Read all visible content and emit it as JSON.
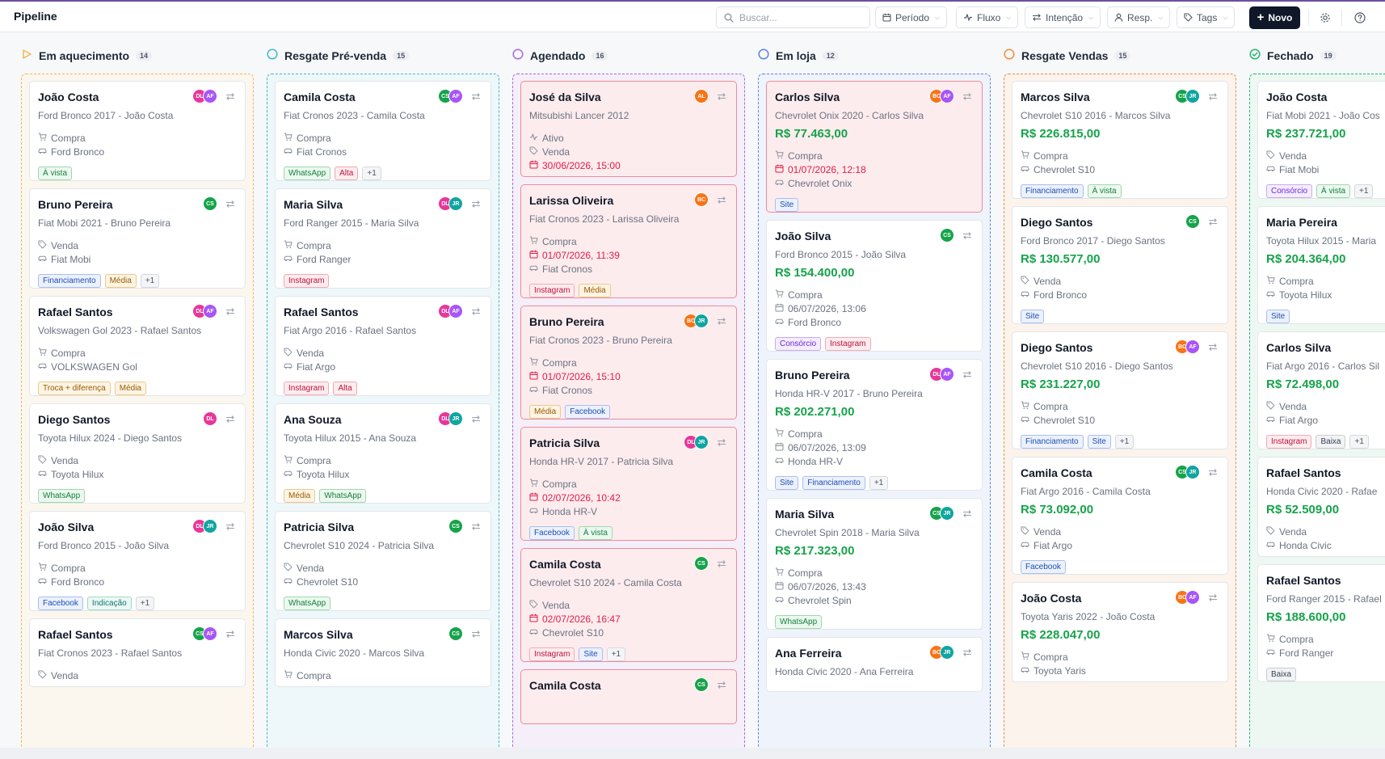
{
  "header": {
    "title": "Pipeline",
    "search_placeholder": "Buscar...",
    "filters": [
      {
        "label": "Período",
        "icon": "calendar-icon"
      },
      {
        "label": "Fluxo",
        "icon": "activity-icon"
      },
      {
        "label": "Intenção",
        "icon": "arrows-icon"
      },
      {
        "label": "Resp.",
        "icon": "user-icon"
      },
      {
        "label": "Tags",
        "icon": "tag-icon"
      }
    ],
    "new_label": "Novo"
  },
  "colors": {
    "green": "#16a34a",
    "red": "#e11d48",
    "accent_dark": "#0f1729"
  },
  "columns": [
    {
      "title": "Em aquecimento",
      "count": "14",
      "icon": "play-triangle-icon",
      "cards": [
        {
          "name": "João Costa",
          "subtitle": "Ford Bronco 2017 - João Costa",
          "price": "",
          "overdue": false,
          "lines": [
            {
              "icon": "cart-icon",
              "text": "Compra"
            },
            {
              "icon": "car-icon",
              "text": "Ford Bronco"
            }
          ],
          "tags": [
            "À vista"
          ],
          "avatars": [
            "DL",
            "AF"
          ]
        },
        {
          "name": "Bruno Pereira",
          "subtitle": "Fiat Mobi 2021 - Bruno Pereira",
          "price": "",
          "overdue": false,
          "lines": [
            {
              "icon": "tag-icon",
              "text": "Venda"
            },
            {
              "icon": "car-icon",
              "text": "Fiat Mobi"
            }
          ],
          "tags": [
            "Financiamento",
            "Média",
            "+1"
          ],
          "avatars": [
            "CS"
          ]
        },
        {
          "name": "Rafael Santos",
          "subtitle": "Volkswagen Gol 2023 - Rafael Santos",
          "price": "",
          "overdue": false,
          "lines": [
            {
              "icon": "cart-icon",
              "text": "Compra"
            },
            {
              "icon": "car-icon",
              "text": "VOLKSWAGEN Gol"
            }
          ],
          "tags": [
            "Troca + diferença",
            "Média"
          ],
          "avatars": [
            "DL",
            "AF"
          ]
        },
        {
          "name": "Diego Santos",
          "subtitle": "Toyota Hilux 2024 - Diego Santos",
          "price": "",
          "overdue": false,
          "lines": [
            {
              "icon": "tag-icon",
              "text": "Venda"
            },
            {
              "icon": "car-icon",
              "text": "Toyota Hilux"
            }
          ],
          "tags": [
            "WhatsApp"
          ],
          "avatars": [
            "DL"
          ]
        },
        {
          "name": "João Silva",
          "subtitle": "Ford Bronco 2015 - João Silva",
          "price": "",
          "overdue": false,
          "lines": [
            {
              "icon": "cart-icon",
              "text": "Compra"
            },
            {
              "icon": "car-icon",
              "text": "Ford Bronco"
            }
          ],
          "tags": [
            "Facebook",
            "Indicação",
            "+1"
          ],
          "avatars": [
            "DL",
            "JR"
          ]
        },
        {
          "name": "Rafael Santos",
          "subtitle": "Fiat Cronos 2023 - Rafael Santos",
          "price": "",
          "overdue": false,
          "lines": [
            {
              "icon": "tag-icon",
              "text": "Venda"
            }
          ],
          "tags": [],
          "avatars": [
            "CS",
            "AF"
          ]
        }
      ]
    },
    {
      "title": "Resgate Pré-venda",
      "count": "15",
      "icon": "circle-icon",
      "cards": [
        {
          "name": "Camila Costa",
          "subtitle": "Fiat Cronos 2023 - Camila Costa",
          "price": "",
          "overdue": false,
          "lines": [
            {
              "icon": "cart-icon",
              "text": "Compra"
            },
            {
              "icon": "car-icon",
              "text": "Fiat Cronos"
            }
          ],
          "tags": [
            "WhatsApp",
            "Alta",
            "+1"
          ],
          "avatars": [
            "CS",
            "AF"
          ]
        },
        {
          "name": "Maria Silva",
          "subtitle": "Ford Ranger 2015 - Maria Silva",
          "price": "",
          "overdue": false,
          "lines": [
            {
              "icon": "cart-icon",
              "text": "Compra"
            },
            {
              "icon": "car-icon",
              "text": "Ford Ranger"
            }
          ],
          "tags": [
            "Instagram"
          ],
          "avatars": [
            "DL",
            "JR"
          ]
        },
        {
          "name": "Rafael Santos",
          "subtitle": "Fiat Argo 2016 - Rafael Santos",
          "price": "",
          "overdue": false,
          "lines": [
            {
              "icon": "tag-icon",
              "text": "Venda"
            },
            {
              "icon": "car-icon",
              "text": "Fiat Argo"
            }
          ],
          "tags": [
            "Instagram",
            "Alta"
          ],
          "avatars": [
            "DL",
            "AF"
          ]
        },
        {
          "name": "Ana Souza",
          "subtitle": "Toyota Hilux 2015 - Ana Souza",
          "price": "",
          "overdue": false,
          "lines": [
            {
              "icon": "cart-icon",
              "text": "Compra"
            },
            {
              "icon": "car-icon",
              "text": "Toyota Hilux"
            }
          ],
          "tags": [
            "Média",
            "WhatsApp"
          ],
          "avatars": [
            "DL",
            "JR"
          ]
        },
        {
          "name": "Patricia Silva",
          "subtitle": "Chevrolet S10 2024 - Patricia Silva",
          "price": "",
          "overdue": false,
          "lines": [
            {
              "icon": "tag-icon",
              "text": "Venda"
            },
            {
              "icon": "car-icon",
              "text": "Chevrolet S10"
            }
          ],
          "tags": [
            "WhatsApp"
          ],
          "avatars": [
            "CS"
          ]
        },
        {
          "name": "Marcos Silva",
          "subtitle": "Honda Civic 2020 - Marcos Silva",
          "price": "",
          "overdue": false,
          "lines": [
            {
              "icon": "cart-icon",
              "text": "Compra"
            }
          ],
          "tags": [],
          "avatars": [
            "CS"
          ]
        }
      ]
    },
    {
      "title": "Agendado",
      "count": "16",
      "icon": "circle-icon",
      "cards": [
        {
          "name": "José da Silva",
          "subtitle": "Mitsubishi Lancer 2012",
          "price": "",
          "overdue": true,
          "lines": [
            {
              "icon": "activity-icon",
              "text": "Ativo"
            },
            {
              "icon": "tag-icon",
              "text": "Venda"
            },
            {
              "icon": "calendar-icon",
              "text": "30/06/2026, 15:00",
              "red": true
            }
          ],
          "tags": [],
          "avatars": [
            "AL"
          ]
        },
        {
          "name": "Larissa Oliveira",
          "subtitle": "Fiat Cronos 2023 - Larissa Oliveira",
          "price": "",
          "overdue": true,
          "lines": [
            {
              "icon": "cart-icon",
              "text": "Compra"
            },
            {
              "icon": "calendar-icon",
              "text": "01/07/2026, 11:39",
              "red": true
            },
            {
              "icon": "car-icon",
              "text": "Fiat Cronos"
            }
          ],
          "tags": [
            "Instagram",
            "Média"
          ],
          "avatars": [
            "BC"
          ]
        },
        {
          "name": "Bruno Pereira",
          "subtitle": "Fiat Cronos 2023 - Bruno Pereira",
          "price": "",
          "overdue": true,
          "lines": [
            {
              "icon": "cart-icon",
              "text": "Compra"
            },
            {
              "icon": "calendar-icon",
              "text": "01/07/2026, 15:10",
              "red": true
            },
            {
              "icon": "car-icon",
              "text": "Fiat Cronos"
            }
          ],
          "tags": [
            "Média",
            "Facebook"
          ],
          "avatars": [
            "BC",
            "JR"
          ]
        },
        {
          "name": "Patricia Silva",
          "subtitle": "Honda HR-V 2017 - Patricia Silva",
          "price": "",
          "overdue": true,
          "lines": [
            {
              "icon": "cart-icon",
              "text": "Compra"
            },
            {
              "icon": "calendar-icon",
              "text": "02/07/2026, 10:42",
              "red": true
            },
            {
              "icon": "car-icon",
              "text": "Honda HR-V"
            }
          ],
          "tags": [
            "Facebook",
            "À vista"
          ],
          "avatars": [
            "DL",
            "JR"
          ]
        },
        {
          "name": "Camila Costa",
          "subtitle": "Chevrolet S10 2024 - Camila Costa",
          "price": "",
          "overdue": true,
          "lines": [
            {
              "icon": "tag-icon",
              "text": "Venda"
            },
            {
              "icon": "calendar-icon",
              "text": "02/07/2026, 16:47",
              "red": true
            },
            {
              "icon": "car-icon",
              "text": "Chevrolet S10"
            }
          ],
          "tags": [
            "Instagram",
            "Site",
            "+1"
          ],
          "avatars": [
            "CS"
          ]
        },
        {
          "name": "Camila Costa",
          "subtitle": "",
          "price": "",
          "overdue": true,
          "lines": [],
          "tags": [],
          "avatars": [
            "CS"
          ]
        }
      ]
    },
    {
      "title": "Em loja",
      "count": "12",
      "icon": "circle-icon",
      "cards": [
        {
          "name": "Carlos Silva",
          "subtitle": "Chevrolet Onix 2020 - Carlos Silva",
          "price": "R$ 77.463,00",
          "overdue": true,
          "lines": [
            {
              "icon": "cart-icon",
              "text": "Compra"
            },
            {
              "icon": "calendar-icon",
              "text": "01/07/2026, 12:18",
              "red": true
            },
            {
              "icon": "car-icon",
              "text": "Chevrolet Onix"
            }
          ],
          "tags": [
            "Site"
          ],
          "avatars": [
            "BC",
            "AF"
          ]
        },
        {
          "name": "João Silva",
          "subtitle": "Ford Bronco 2015 - João Silva",
          "price": "R$ 154.400,00",
          "overdue": false,
          "lines": [
            {
              "icon": "cart-icon",
              "text": "Compra"
            },
            {
              "icon": "calendar-icon",
              "text": "06/07/2026, 13:06"
            },
            {
              "icon": "car-icon",
              "text": "Ford Bronco"
            }
          ],
          "tags": [
            "Consórcio",
            "Instagram"
          ],
          "avatars": [
            "CS"
          ]
        },
        {
          "name": "Bruno Pereira",
          "subtitle": "Honda HR-V 2017 - Bruno Pereira",
          "price": "R$ 202.271,00",
          "overdue": false,
          "lines": [
            {
              "icon": "cart-icon",
              "text": "Compra"
            },
            {
              "icon": "calendar-icon",
              "text": "06/07/2026, 13:09"
            },
            {
              "icon": "car-icon",
              "text": "Honda HR-V"
            }
          ],
          "tags": [
            "Site",
            "Financiamento",
            "+1"
          ],
          "avatars": [
            "DL",
            "AF"
          ]
        },
        {
          "name": "Maria Silva",
          "subtitle": "Chevrolet Spin 2018 - Maria Silva",
          "price": "R$ 217.323,00",
          "overdue": false,
          "lines": [
            {
              "icon": "cart-icon",
              "text": "Compra"
            },
            {
              "icon": "calendar-icon",
              "text": "06/07/2026, 13:43"
            },
            {
              "icon": "car-icon",
              "text": "Chevrolet Spin"
            }
          ],
          "tags": [
            "WhatsApp"
          ],
          "avatars": [
            "CS",
            "JR"
          ]
        },
        {
          "name": "Ana Ferreira",
          "subtitle": "Honda Civic 2020 - Ana Ferreira",
          "price": "",
          "overdue": false,
          "lines": [],
          "tags": [],
          "avatars": [
            "BC",
            "JR"
          ]
        }
      ]
    },
    {
      "title": "Resgate Vendas",
      "count": "15",
      "icon": "circle-icon",
      "cards": [
        {
          "name": "Marcos Silva",
          "subtitle": "Chevrolet S10 2016 - Marcos Silva",
          "price": "R$ 226.815,00",
          "overdue": false,
          "lines": [
            {
              "icon": "cart-icon",
              "text": "Compra"
            },
            {
              "icon": "car-icon",
              "text": "Chevrolet S10"
            }
          ],
          "tags": [
            "Financiamento",
            "À vista"
          ],
          "avatars": [
            "CS",
            "JR"
          ]
        },
        {
          "name": "Diego Santos",
          "subtitle": "Ford Bronco 2017 - Diego Santos",
          "price": "R$ 130.577,00",
          "overdue": false,
          "lines": [
            {
              "icon": "tag-icon",
              "text": "Venda"
            },
            {
              "icon": "car-icon",
              "text": "Ford Bronco"
            }
          ],
          "tags": [
            "Site"
          ],
          "avatars": [
            "CS"
          ]
        },
        {
          "name": "Diego Santos",
          "subtitle": "Chevrolet S10 2016 - Diego Santos",
          "price": "R$ 231.227,00",
          "overdue": false,
          "lines": [
            {
              "icon": "cart-icon",
              "text": "Compra"
            },
            {
              "icon": "car-icon",
              "text": "Chevrolet S10"
            }
          ],
          "tags": [
            "Financiamento",
            "Site",
            "+1"
          ],
          "avatars": [
            "BC",
            "AF"
          ]
        },
        {
          "name": "Camila Costa",
          "subtitle": "Fiat Argo 2016 - Camila Costa",
          "price": "R$ 73.092,00",
          "overdue": false,
          "lines": [
            {
              "icon": "tag-icon",
              "text": "Venda"
            },
            {
              "icon": "car-icon",
              "text": "Fiat Argo"
            }
          ],
          "tags": [
            "Facebook"
          ],
          "avatars": [
            "CS",
            "JR"
          ]
        },
        {
          "name": "João Costa",
          "subtitle": "Toyota Yaris 2022 - João Costa",
          "price": "R$ 228.047,00",
          "overdue": false,
          "lines": [
            {
              "icon": "cart-icon",
              "text": "Compra"
            },
            {
              "icon": "car-icon",
              "text": "Toyota Yaris"
            }
          ],
          "tags": [],
          "avatars": [
            "BC",
            "AF"
          ]
        }
      ]
    },
    {
      "title": "Fechado",
      "count": "19",
      "icon": "check-circle-icon",
      "cards": [
        {
          "name": "João Costa",
          "subtitle": "Fiat Mobi 2021 - João Cos",
          "price": "R$ 237.721,00",
          "overdue": false,
          "lines": [
            {
              "icon": "tag-icon",
              "text": "Venda"
            },
            {
              "icon": "car-icon",
              "text": "Fiat Mobi"
            }
          ],
          "tags": [
            "Consórcio",
            "À vista",
            "+1"
          ],
          "avatars": []
        },
        {
          "name": "Maria Pereira",
          "subtitle": "Toyota Hilux 2015 - Maria",
          "price": "R$ 204.364,00",
          "overdue": false,
          "lines": [
            {
              "icon": "cart-icon",
              "text": "Compra"
            },
            {
              "icon": "car-icon",
              "text": "Toyota Hilux"
            }
          ],
          "tags": [
            "Site"
          ],
          "avatars": []
        },
        {
          "name": "Carlos Silva",
          "subtitle": "Fiat Argo 2016 - Carlos Sil",
          "price": "R$ 72.498,00",
          "overdue": false,
          "lines": [
            {
              "icon": "tag-icon",
              "text": "Venda"
            },
            {
              "icon": "car-icon",
              "text": "Fiat Argo"
            }
          ],
          "tags": [
            "Instagram",
            "Baixa",
            "+1"
          ],
          "avatars": []
        },
        {
          "name": "Rafael Santos",
          "subtitle": "Honda Civic 2020 - Rafae",
          "price": "R$ 52.509,00",
          "overdue": false,
          "lines": [
            {
              "icon": "tag-icon",
              "text": "Venda"
            },
            {
              "icon": "car-icon",
              "text": "Honda Civic"
            }
          ],
          "tags": [],
          "avatars": []
        },
        {
          "name": "Rafael Santos",
          "subtitle": "Ford Ranger 2015 - Rafael",
          "price": "R$ 188.600,00",
          "overdue": false,
          "lines": [
            {
              "icon": "cart-icon",
              "text": "Compra"
            },
            {
              "icon": "car-icon",
              "text": "Ford Ranger"
            }
          ],
          "tags": [
            "Baixa"
          ],
          "avatars": []
        }
      ]
    }
  ]
}
